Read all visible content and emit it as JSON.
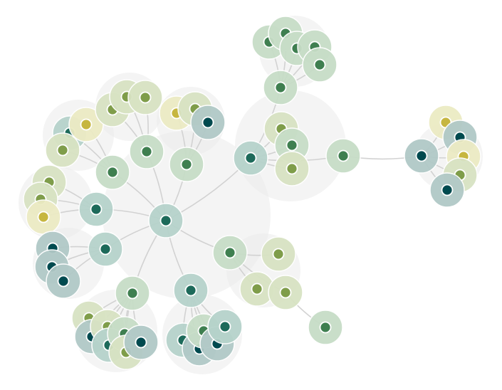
{
  "diagram": {
    "type": "network-bubble-graph",
    "has_text_labels": false,
    "colors": {
      "background": "#ffffff",
      "cluster_halo": "#ebebeb",
      "edge": "#d2d2d2",
      "node_stroke": "#ffffff",
      "categories": [
        {
          "name": "teal-dark",
          "ring": "#b1c9c7",
          "dot": "#004a4f"
        },
        {
          "name": "teal",
          "ring": "#b6d3cb",
          "dot": "#1d6a5a"
        },
        {
          "name": "green",
          "ring": "#c7ddc7",
          "dot": "#3f7f50"
        },
        {
          "name": "olive",
          "ring": "#d8e3c3",
          "dot": "#7f9d4a"
        },
        {
          "name": "yellow",
          "ring": "#ecebc4",
          "dot": "#c6b640"
        }
      ]
    },
    "node_count": 62,
    "edge_count": 61
  }
}
